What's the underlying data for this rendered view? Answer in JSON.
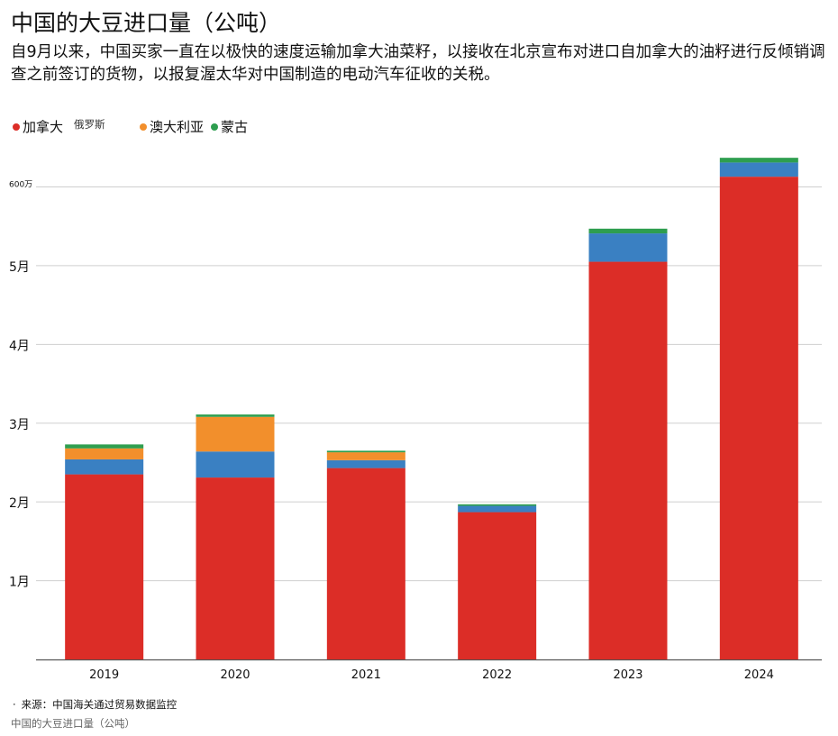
{
  "header": {
    "title": "中国的大豆进口量（公吨）",
    "subtitle": "自9月以来，中国买家一直在以极快的速度运输加拿大油菜籽，以接收在北京宣布对进口自加拿大的油籽进行反倾销调查之前签订的货物，以报复渥太华对中国制造的电动汽车征收的关税。"
  },
  "legend": [
    {
      "label": "加拿大",
      "color": "#dc2d27"
    },
    {
      "label": "俄罗斯",
      "color": "#3a80c2"
    },
    {
      "label": "澳大利亚",
      "color": "#f28f2c"
    },
    {
      "label": "蒙古",
      "color": "#2e9e4f"
    }
  ],
  "chart_data": {
    "type": "bar",
    "stacked": true,
    "categories": [
      "2019",
      "2020",
      "2021",
      "2022",
      "2023",
      "2024"
    ],
    "series": [
      {
        "name": "加拿大",
        "color": "#dc2d27",
        "values": [
          2350000,
          2310000,
          2430000,
          1870000,
          5050000,
          6130000
        ]
      },
      {
        "name": "俄罗斯",
        "color": "#3a80c2",
        "values": [
          190000,
          330000,
          100000,
          80000,
          360000,
          180000
        ]
      },
      {
        "name": "澳大利亚",
        "color": "#f28f2c",
        "values": [
          140000,
          440000,
          100000,
          0,
          0,
          0
        ]
      },
      {
        "name": "蒙古",
        "color": "#2e9e4f",
        "values": [
          50000,
          30000,
          20000,
          20000,
          60000,
          60000
        ]
      }
    ],
    "ylim": [
      0,
      6400000
    ],
    "yticks": [
      {
        "value": 1000000,
        "label": "1月"
      },
      {
        "value": 2000000,
        "label": "2月"
      },
      {
        "value": 3000000,
        "label": "3月"
      },
      {
        "value": 4000000,
        "label": "4月"
      },
      {
        "value": 5000000,
        "label": "5月"
      },
      {
        "value": 6000000,
        "label": "600万"
      }
    ],
    "grid": true
  },
  "source": {
    "bullet": "·",
    "text": "来源：中国海关通过贸易数据监控"
  },
  "footer": {
    "title": "中国的大豆进口量（公吨）"
  }
}
